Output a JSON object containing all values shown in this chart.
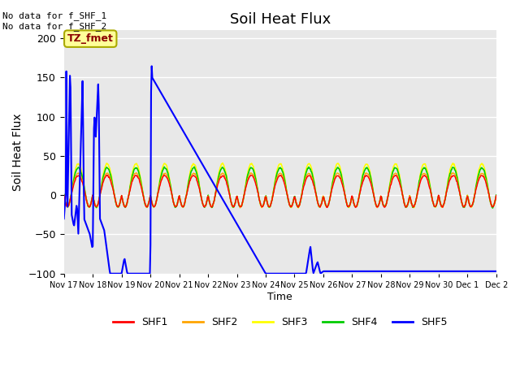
{
  "title": "Soil Heat Flux",
  "ylabel": "Soil Heat Flux",
  "xlabel": "Time",
  "ylim": [
    -100,
    210
  ],
  "yticks": [
    -100,
    -50,
    0,
    50,
    100,
    150,
    200
  ],
  "figure_color": "#ffffff",
  "plot_bg_color": "#e8e8e8",
  "annotation_text": "No data for f_SHF_1\nNo data for f_SHF_2",
  "legend_label": "TZ_fmet",
  "series_colors": {
    "SHF1": "#ff0000",
    "SHF2": "#ffa500",
    "SHF3": "#ffff00",
    "SHF4": "#00cc00",
    "SHF5": "#0000ff"
  },
  "xtick_labels": [
    "Nov 17",
    "Nov 18",
    "Nov 19",
    "Nov 20",
    "Nov 21",
    "Nov 22",
    "Nov 23",
    "Nov 24",
    "Nov 25",
    "Nov 26",
    "Nov 27",
    "Nov 28",
    "Nov 29",
    "Nov 30",
    "Dec 1",
    "Dec 2"
  ],
  "xtick_positions": [
    0,
    1,
    2,
    3,
    4,
    5,
    6,
    7,
    8,
    9,
    10,
    11,
    12,
    13,
    14,
    15
  ]
}
